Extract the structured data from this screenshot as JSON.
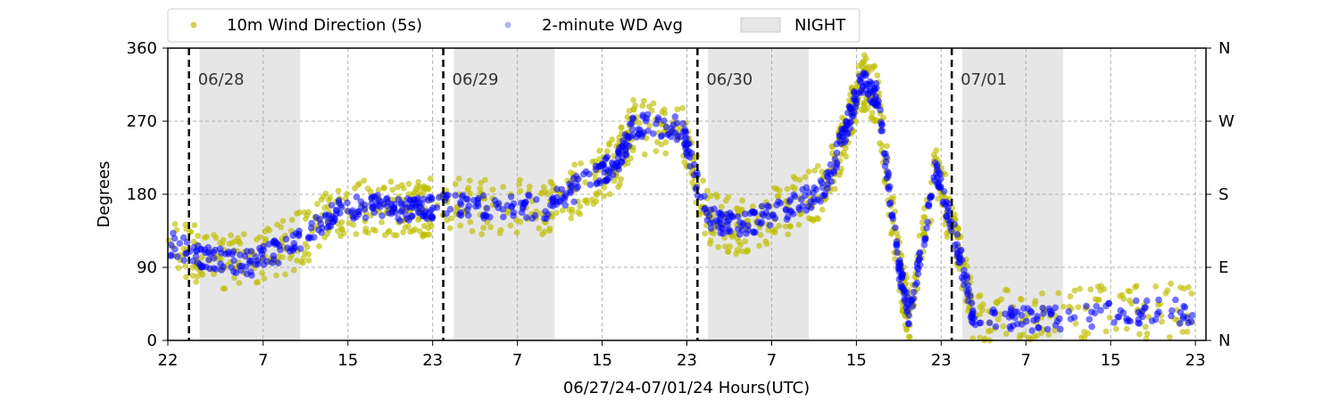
{
  "chart_data": {
    "type": "scatter",
    "xlabel": "06/27/24-07/01/24  Hours(UTC)",
    "ylabel": "Degrees",
    "ylim": [
      0,
      360
    ],
    "yticks": [
      0,
      90,
      180,
      270,
      360
    ],
    "right_ticks": [
      "N",
      "E",
      "S",
      "W",
      "N"
    ],
    "xlim": [
      "2024-06-27 22:00",
      "2024-07-02 00:00"
    ],
    "xtick_labels": [
      "22",
      "7",
      "15",
      "23",
      "7",
      "15",
      "23",
      "7",
      "15",
      "23",
      "7",
      "15",
      "23"
    ],
    "xtick_times": [
      "2024-06-27 22:00",
      "2024-06-28 07:00",
      "2024-06-28 15:00",
      "2024-06-28 23:00",
      "2024-06-29 07:00",
      "2024-06-29 15:00",
      "2024-06-29 23:00",
      "2024-06-30 07:00",
      "2024-06-30 15:00",
      "2024-06-30 23:00",
      "2024-07-01 07:00",
      "2024-07-01 15:00",
      "2024-07-01 23:00"
    ],
    "grid": true,
    "legend_position": "top",
    "day_markers": [
      {
        "label": "06/28",
        "time": "2024-06-28 00:00"
      },
      {
        "label": "06/29",
        "time": "2024-06-29 00:00"
      },
      {
        "label": "06/30",
        "time": "2024-06-30 00:00"
      },
      {
        "label": "07/01",
        "time": "2024-07-01 00:00"
      }
    ],
    "night_bands": [
      {
        "start": "2024-06-28 01:00",
        "end": "2024-06-28 10:30"
      },
      {
        "start": "2024-06-29 01:00",
        "end": "2024-06-29 10:30"
      },
      {
        "start": "2024-06-30 01:00",
        "end": "2024-06-30 10:30"
      },
      {
        "start": "2024-07-01 01:00",
        "end": "2024-07-01 10:30"
      }
    ],
    "series": [
      {
        "name": "10m Wind Direction (5s)",
        "color": "#bfbf00",
        "spread": 35,
        "x": [
          "2024-06-27 22:00",
          "2024-06-28 02:00",
          "2024-06-28 06:00",
          "2024-06-28 10:00",
          "2024-06-28 14:00",
          "2024-06-28 18:00",
          "2024-06-28 21:00",
          "2024-06-28 23:00",
          "2024-06-29 04:00",
          "2024-06-29 10:00",
          "2024-06-29 14:00",
          "2024-06-29 16:30",
          "2024-06-29 18:00",
          "2024-06-29 22:30",
          "2024-06-30 01:00",
          "2024-06-30 04:00",
          "2024-06-30 08:00",
          "2024-06-30 12:00",
          "2024-06-30 14:00",
          "2024-06-30 15:30",
          "2024-06-30 17:00",
          "2024-06-30 19:00",
          "2024-06-30 20:00",
          "2024-06-30 22:30",
          "2024-07-01 00:30",
          "2024-07-01 02:00",
          "2024-07-01 08:00",
          "2024-07-01 16:00",
          "2024-07-01 23:00"
        ],
        "y": [
          120,
          100,
          95,
          120,
          160,
          165,
          160,
          165,
          165,
          165,
          200,
          220,
          265,
          260,
          150,
          140,
          160,
          185,
          260,
          320,
          300,
          90,
          30,
          210,
          120,
          30,
          25,
          35,
          35
        ]
      },
      {
        "name": "2-minute WD Avg",
        "color": "#0000ff",
        "spread": 15,
        "x": [
          "2024-06-27 22:00",
          "2024-06-28 02:00",
          "2024-06-28 06:00",
          "2024-06-28 10:00",
          "2024-06-28 14:00",
          "2024-06-28 18:00",
          "2024-06-28 21:00",
          "2024-06-28 23:00",
          "2024-06-29 04:00",
          "2024-06-29 10:00",
          "2024-06-29 14:00",
          "2024-06-29 16:30",
          "2024-06-29 18:00",
          "2024-06-29 22:30",
          "2024-06-30 01:00",
          "2024-06-30 04:00",
          "2024-06-30 08:00",
          "2024-06-30 12:00",
          "2024-06-30 14:00",
          "2024-06-30 15:30",
          "2024-06-30 17:00",
          "2024-06-30 19:00",
          "2024-06-30 20:00",
          "2024-06-30 22:30",
          "2024-07-01 00:30",
          "2024-07-01 02:00",
          "2024-07-01 08:00",
          "2024-07-01 16:00",
          "2024-07-01 23:00"
        ],
        "y": [
          120,
          100,
          95,
          120,
          160,
          165,
          160,
          165,
          165,
          165,
          200,
          220,
          265,
          260,
          150,
          140,
          160,
          185,
          260,
          320,
          300,
          90,
          30,
          210,
          120,
          30,
          25,
          35,
          35
        ]
      }
    ],
    "night_legend": {
      "label": "NIGHT",
      "color": "#e6e6e6"
    }
  }
}
